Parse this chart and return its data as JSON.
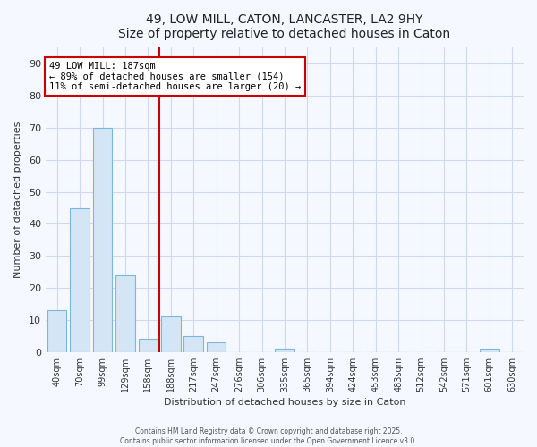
{
  "title": "49, LOW MILL, CATON, LANCASTER, LA2 9HY",
  "subtitle": "Size of property relative to detached houses in Caton",
  "xlabel": "Distribution of detached houses by size in Caton",
  "ylabel": "Number of detached properties",
  "categories": [
    "40sqm",
    "70sqm",
    "99sqm",
    "129sqm",
    "158sqm",
    "188sqm",
    "217sqm",
    "247sqm",
    "276sqm",
    "306sqm",
    "335sqm",
    "365sqm",
    "394sqm",
    "424sqm",
    "453sqm",
    "483sqm",
    "512sqm",
    "542sqm",
    "571sqm",
    "601sqm",
    "630sqm"
  ],
  "values": [
    13,
    45,
    70,
    24,
    4,
    11,
    5,
    3,
    0,
    0,
    1,
    0,
    0,
    0,
    0,
    0,
    0,
    0,
    0,
    1,
    0
  ],
  "bar_color": "#d4e6f5",
  "bar_edge_color": "#7ab8d9",
  "marker_index": 5,
  "marker_color": "#cc0000",
  "annotation_line1": "49 LOW MILL: 187sqm",
  "annotation_line2": "← 89% of detached houses are smaller (154)",
  "annotation_line3": "11% of semi-detached houses are larger (20) →",
  "annotation_box_color": "#ffffff",
  "annotation_box_edge": "#cc0000",
  "ylim": [
    0,
    95
  ],
  "yticks": [
    0,
    10,
    20,
    30,
    40,
    50,
    60,
    70,
    80,
    90
  ],
  "background_color": "#f5f8ff",
  "grid_color": "#d0d8f0",
  "footer1": "Contains HM Land Registry data © Crown copyright and database right 2025.",
  "footer2": "Contains public sector information licensed under the Open Government Licence v3.0."
}
